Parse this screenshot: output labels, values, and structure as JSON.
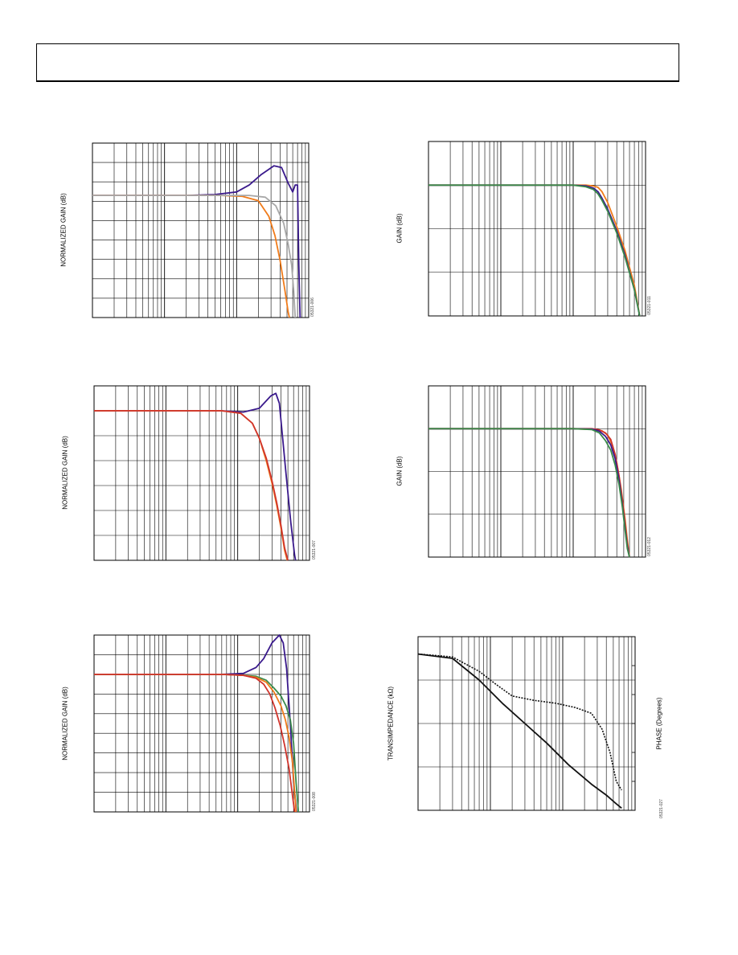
{
  "palette": {
    "blue": "#3a1a8c",
    "orange": "#f07b1a",
    "gray": "#a8a8a8",
    "red": "#d0342c",
    "green": "#3a8a4a",
    "black": "#111111"
  },
  "panels": {
    "p1": {
      "ylabel": "NORMALIZED GAIN (dB)",
      "fignum": "05321-006"
    },
    "p2": {
      "ylabel": "GAIN (dB)",
      "fignum": "05321-011"
    },
    "p3": {
      "ylabel": "NORMALIZED GAIN (dB)",
      "fignum": "05321-007"
    },
    "p4": {
      "ylabel": "GAIN (dB)",
      "fignum": "05321-012"
    },
    "p5": {
      "ylabel": "NORMALIZED GAIN (dB)",
      "fignum": "05321-008"
    },
    "p6": {
      "ylabel": "TRANSIMPEDANCE (kΩ)",
      "ylabel2": "PHASE (Degrees)",
      "fignum": "05321-027"
    }
  },
  "chart_data": [
    {
      "id": "p1",
      "type": "line",
      "xscale": "log",
      "xlim": [
        1,
        1000
      ],
      "ylim": [
        -9,
        1
      ],
      "series": [
        {
          "color": "blue",
          "x": [
            1,
            20,
            50,
            100,
            150,
            220,
            330,
            420,
            520,
            600,
            650,
            700,
            730,
            760
          ],
          "y": [
            -2.0,
            -2.0,
            -1.95,
            -1.8,
            -1.4,
            -0.8,
            -0.3,
            -0.4,
            -1.3,
            -1.8,
            -1.4,
            -1.4,
            -6,
            -9
          ]
        },
        {
          "color": "orange",
          "x": [
            1,
            60,
            120,
            200,
            280,
            340,
            400,
            470,
            520,
            540
          ],
          "y": [
            -2.0,
            -2.0,
            -2.05,
            -2.3,
            -3.2,
            -4.3,
            -5.7,
            -7.5,
            -8.7,
            -9
          ]
        },
        {
          "color": "gray",
          "x": [
            1,
            150,
            250,
            350,
            450,
            520,
            580,
            620,
            650
          ],
          "y": [
            -2.0,
            -2.0,
            -2.1,
            -2.6,
            -3.6,
            -4.8,
            -6.0,
            -7.5,
            -9
          ]
        }
      ]
    },
    {
      "id": "p2",
      "type": "line",
      "xscale": "log",
      "xlim": [
        1,
        1000
      ],
      "ylim": [
        -3,
        1
      ],
      "series": [
        {
          "color": "orange",
          "x": [
            1,
            100,
            150,
            190,
            220,
            250,
            300,
            400,
            520,
            700,
            830
          ],
          "y": [
            0,
            0,
            0,
            -0.02,
            -0.05,
            -0.15,
            -0.4,
            -0.95,
            -1.5,
            -2.3,
            -3
          ]
        },
        {
          "color": "blue",
          "x": [
            1,
            100,
            150,
            190,
            220,
            250,
            300,
            400,
            520,
            700,
            830
          ],
          "y": [
            0,
            0,
            -0.02,
            -0.07,
            -0.15,
            -0.3,
            -0.55,
            -1.05,
            -1.6,
            -2.4,
            -3
          ]
        },
        {
          "color": "green",
          "x": [
            1,
            100,
            150,
            190,
            220,
            250,
            300,
            400,
            520,
            700,
            830
          ],
          "y": [
            0,
            0,
            -0.04,
            -0.1,
            -0.2,
            -0.35,
            -0.6,
            -1.1,
            -1.65,
            -2.4,
            -3
          ]
        }
      ]
    },
    {
      "id": "p3",
      "type": "line",
      "xscale": "log",
      "xlim": [
        1,
        1000
      ],
      "ylim": [
        -6,
        1
      ],
      "series": [
        {
          "color": "blue",
          "x": [
            1,
            60,
            120,
            200,
            290,
            340,
            380,
            420,
            470,
            550,
            620,
            640
          ],
          "y": [
            0,
            0,
            -0.05,
            0.1,
            0.6,
            0.7,
            0.3,
            -1.0,
            -2.5,
            -4.5,
            -5.8,
            -6
          ]
        },
        {
          "color": "orange",
          "x": [
            1,
            60,
            110,
            160,
            200,
            250,
            300,
            350,
            400,
            450,
            490
          ],
          "y": [
            0,
            0,
            -0.1,
            -0.5,
            -1.1,
            -2.0,
            -2.9,
            -3.8,
            -4.7,
            -5.6,
            -6
          ]
        },
        {
          "color": "red",
          "x": [
            1,
            60,
            110,
            160,
            200,
            250,
            300,
            350,
            400,
            450,
            500
          ],
          "y": [
            0,
            0,
            -0.1,
            -0.5,
            -1.1,
            -1.9,
            -2.8,
            -3.7,
            -4.6,
            -5.5,
            -6
          ]
        }
      ]
    },
    {
      "id": "p4",
      "type": "line",
      "xscale": "log",
      "xlim": [
        1,
        1000
      ],
      "ylim": [
        -3,
        1
      ],
      "series": [
        {
          "color": "orange",
          "x": [
            1,
            100,
            200,
            250,
            300,
            350,
            400,
            460,
            520,
            560,
            600
          ],
          "y": [
            0,
            0,
            -0.02,
            -0.05,
            -0.15,
            -0.4,
            -0.8,
            -1.4,
            -2.1,
            -2.6,
            -3
          ]
        },
        {
          "color": "red",
          "x": [
            1,
            100,
            180,
            230,
            280,
            330,
            380,
            430,
            480,
            520,
            560,
            600
          ],
          "y": [
            0,
            0,
            0,
            -0.03,
            -0.1,
            -0.25,
            -0.6,
            -1.1,
            -1.7,
            -2.2,
            -2.7,
            -3
          ]
        },
        {
          "color": "blue",
          "x": [
            1,
            100,
            180,
            230,
            280,
            330,
            380,
            430,
            480,
            520,
            560,
            600
          ],
          "y": [
            0,
            0,
            -0.01,
            -0.06,
            -0.18,
            -0.38,
            -0.7,
            -1.2,
            -1.8,
            -2.3,
            -2.75,
            -3
          ]
        },
        {
          "color": "green",
          "x": [
            1,
            100,
            180,
            230,
            280,
            330,
            380,
            430,
            480,
            520,
            560,
            600
          ],
          "y": [
            0,
            0,
            -0.02,
            -0.1,
            -0.28,
            -0.5,
            -0.85,
            -1.3,
            -1.85,
            -2.35,
            -2.8,
            -3
          ]
        }
      ]
    },
    {
      "id": "p5",
      "type": "line",
      "xscale": "log",
      "xlim": [
        1,
        1000
      ],
      "ylim": [
        -7,
        2
      ],
      "series": [
        {
          "color": "blue",
          "x": [
            1,
            60,
            120,
            180,
            230,
            300,
            380,
            430,
            480,
            540,
            600,
            660
          ],
          "y": [
            0,
            0,
            0.05,
            0.35,
            0.8,
            1.6,
            2.0,
            1.6,
            0.3,
            -2.5,
            -5.5,
            -7
          ]
        },
        {
          "color": "green",
          "x": [
            1,
            60,
            120,
            180,
            250,
            320,
            400,
            470,
            540,
            600,
            650,
            700
          ],
          "y": [
            0,
            0,
            -0.05,
            -0.1,
            -0.3,
            -0.7,
            -1.1,
            -1.6,
            -2.3,
            -3.5,
            -5.5,
            -7
          ]
        },
        {
          "color": "orange",
          "x": [
            1,
            60,
            120,
            180,
            250,
            320,
            400,
            460,
            520,
            580,
            620,
            650
          ],
          "y": [
            0,
            0,
            -0.05,
            -0.15,
            -0.4,
            -0.9,
            -1.6,
            -2.3,
            -3.2,
            -4.5,
            -6.0,
            -7
          ]
        },
        {
          "color": "red",
          "x": [
            1,
            60,
            120,
            180,
            230,
            280,
            330,
            390,
            450,
            520,
            580,
            620
          ],
          "y": [
            0,
            0,
            -0.05,
            -0.2,
            -0.5,
            -1.0,
            -1.7,
            -2.6,
            -3.6,
            -4.8,
            -6.2,
            -7
          ]
        }
      ]
    },
    {
      "id": "p6",
      "type": "line",
      "xscale": "log",
      "xlim": [
        1,
        1000
      ],
      "ylim": [
        0,
        4
      ],
      "y2lim": [
        0,
        6
      ],
      "series": [
        {
          "color": "black",
          "dash": false,
          "x": [
            1,
            3,
            7,
            15,
            30,
            60,
            120,
            250,
            400,
            550,
            650
          ],
          "y": [
            3.6,
            3.5,
            3.0,
            2.45,
            2.0,
            1.55,
            1.05,
            0.6,
            0.35,
            0.15,
            0.05
          ]
        },
        {
          "color": "black",
          "dash": true,
          "axis": "y2",
          "x": [
            1,
            3,
            7,
            12,
            20,
            40,
            80,
            150,
            250,
            350,
            450,
            550,
            650
          ],
          "y": [
            5.4,
            5.3,
            4.8,
            4.35,
            3.95,
            3.8,
            3.7,
            3.55,
            3.35,
            2.8,
            2.0,
            1.0,
            0.7
          ]
        }
      ]
    }
  ]
}
